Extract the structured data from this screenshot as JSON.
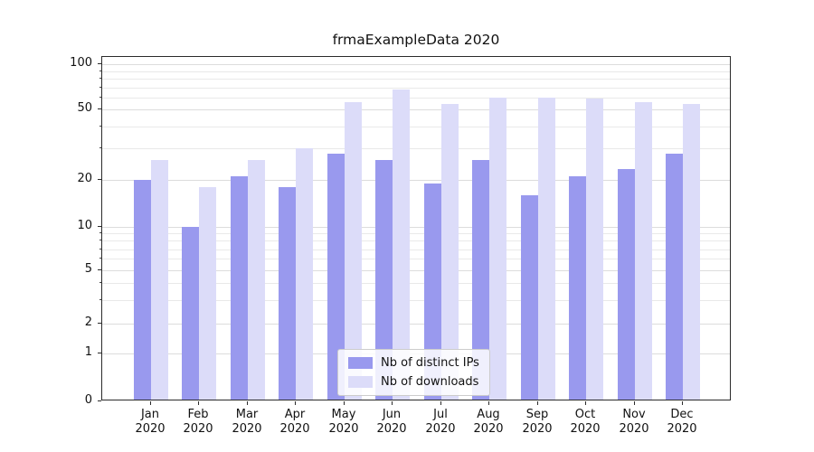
{
  "chart_data": {
    "type": "bar",
    "title": "frmaExampleData 2020",
    "x_year": "2020",
    "categories": [
      "Jan",
      "Feb",
      "Mar",
      "Apr",
      "May",
      "Jun",
      "Jul",
      "Aug",
      "Sep",
      "Oct",
      "Nov",
      "Dec"
    ],
    "series": [
      {
        "name": "Nb of distinct IPs",
        "color": "#9999ee",
        "values": [
          20,
          10,
          21,
          18,
          28,
          26,
          19,
          26,
          16,
          21,
          23,
          28
        ]
      },
      {
        "name": "Nb of downloads",
        "color": "#dcdcf9",
        "values": [
          26,
          18,
          26,
          30,
          56,
          68,
          54,
          60,
          60,
          59,
          56,
          54
        ]
      }
    ],
    "yscale": "symlog",
    "yticks": [
      100,
      50,
      20,
      10,
      5,
      2,
      1,
      0
    ],
    "ylim": [
      0,
      100
    ],
    "grid": true,
    "legend_position": "lower center inside plot",
    "colors": {
      "grid_major": "#dcdcdc",
      "grid_minor": "#e9e9e9",
      "axis": "#2b2b2b"
    }
  }
}
